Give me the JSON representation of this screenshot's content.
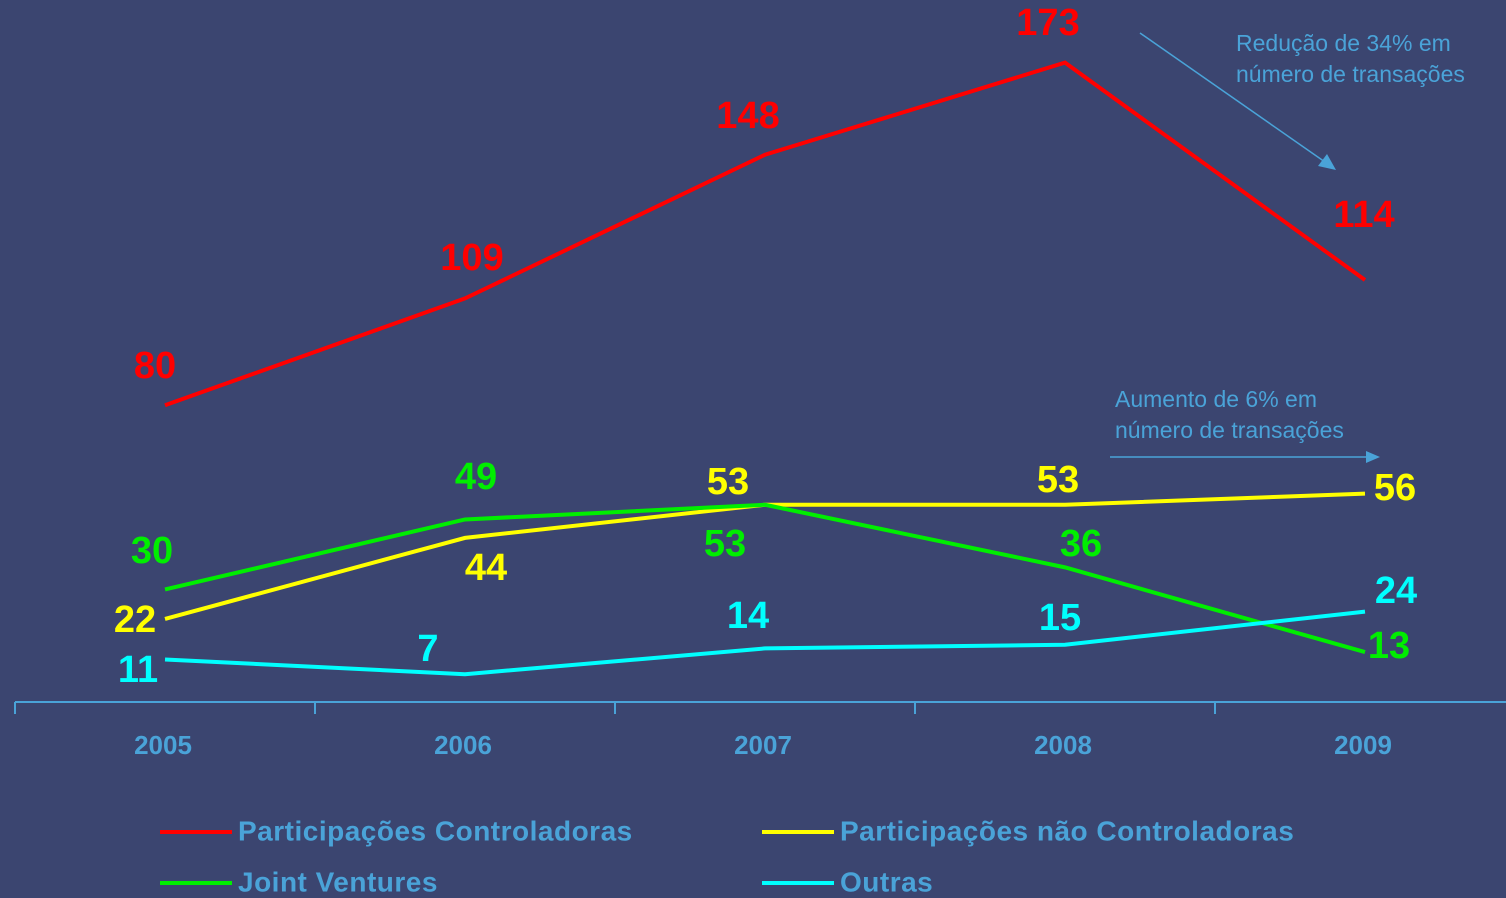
{
  "chart_data": {
    "type": "line",
    "categories": [
      "2005",
      "2006",
      "2007",
      "2008",
      "2009"
    ],
    "series": [
      {
        "name": "Participações Controladoras",
        "color": "#ff0000",
        "values": [
          80,
          109,
          148,
          173,
          114
        ]
      },
      {
        "name": "Participações não Controladoras",
        "color": "#ffff00",
        "values": [
          22,
          44,
          53,
          53,
          56
        ]
      },
      {
        "name": "Joint Ventures",
        "color": "#00ee00",
        "values": [
          30,
          49,
          53,
          36,
          13
        ]
      },
      {
        "name": "Outras",
        "color": "#00ffff",
        "values": [
          11,
          7,
          14,
          15,
          24
        ]
      }
    ],
    "ylim": [
      0,
      190
    ],
    "annotations": [
      {
        "lines": [
          "Redução de 34% em",
          "número de transações"
        ]
      },
      {
        "lines": [
          "Aumento de 6% em",
          "número de transações"
        ]
      }
    ]
  }
}
